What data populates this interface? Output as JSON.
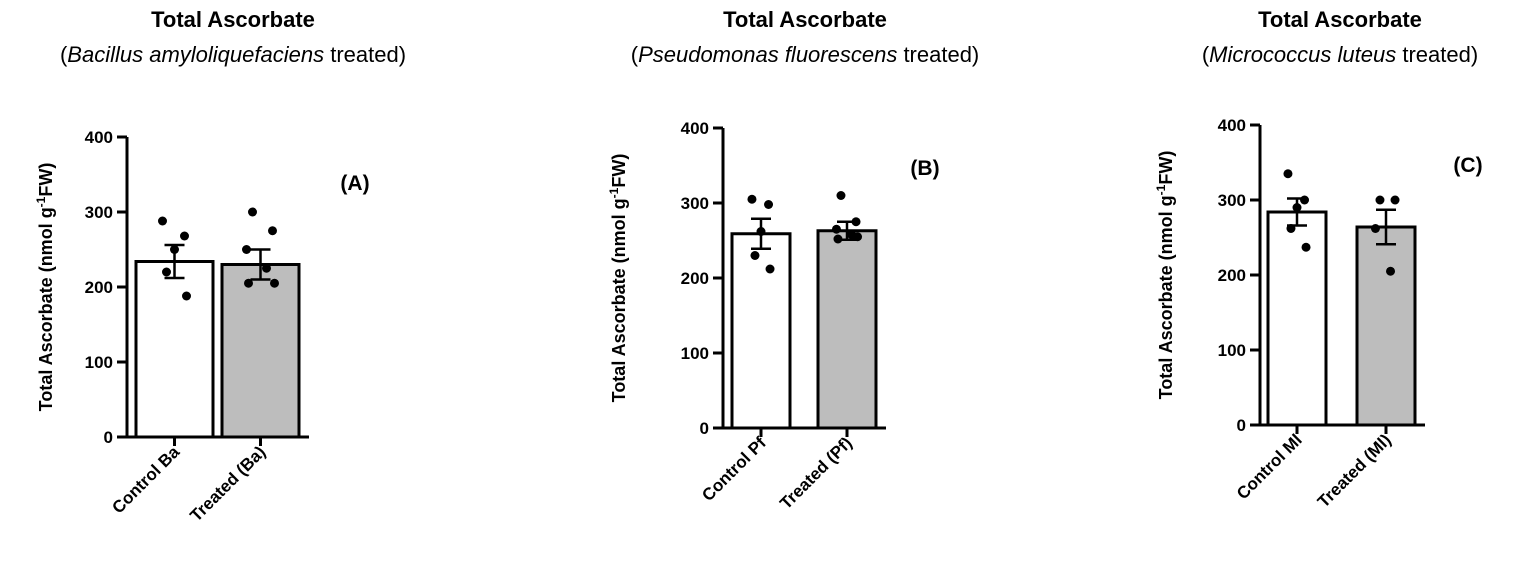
{
  "chart_data": [
    {
      "type": "bar",
      "panel_label": "(A)",
      "title": "Total Ascorbate",
      "subtitle_prefix": "(",
      "subtitle_italic": "Bacillus amyloliquefaciens",
      "subtitle_suffix": " treated)",
      "ylabel_main": "Total Ascorbate (nmol g",
      "ylabel_sup": "-1",
      "ylabel_end": "FW)",
      "ylim": [
        0,
        400
      ],
      "yticks": [
        "0",
        "100",
        "200",
        "300",
        "400"
      ],
      "categories": [
        "Control Ba",
        "Treated (Ba)"
      ],
      "values": [
        234,
        230
      ],
      "errors": [
        22,
        20
      ],
      "bar_colors": [
        "#ffffff",
        "#bdbdbd"
      ],
      "points": [
        [
          288,
          268,
          250,
          220,
          188
        ],
        [
          300,
          275,
          250,
          225,
          205,
          205
        ]
      ]
    },
    {
      "type": "bar",
      "panel_label": "(B)",
      "title": "Total Ascorbate",
      "subtitle_prefix": "(",
      "subtitle_italic": "Pseudomonas fluorescens",
      "subtitle_suffix": " treated)",
      "ylabel_main": "Total Ascorbate (nmol g",
      "ylabel_sup": "-1",
      "ylabel_end": "FW)",
      "ylim": [
        0,
        400
      ],
      "yticks": [
        "0",
        "100",
        "200",
        "300",
        "400"
      ],
      "categories": [
        "Control Pf",
        "Treated (Pf)"
      ],
      "values": [
        259,
        263
      ],
      "errors": [
        20,
        12
      ],
      "bar_colors": [
        "#ffffff",
        "#bdbdbd"
      ],
      "points": [
        [
          305,
          298,
          262,
          230,
          212
        ],
        [
          310,
          275,
          265,
          258,
          255,
          252
        ]
      ]
    },
    {
      "type": "bar",
      "panel_label": "(C)",
      "title": "Total Ascorbate",
      "subtitle_prefix": "(",
      "subtitle_italic": "Micrococcus luteus",
      "subtitle_suffix": " treated)",
      "ylabel_main": "Total Ascorbate (nmol g",
      "ylabel_sup": "-1",
      "ylabel_end": "FW)",
      "ylim": [
        0,
        400
      ],
      "yticks": [
        "0",
        "100",
        "200",
        "300",
        "400"
      ],
      "categories": [
        "Control Ml",
        "Treated (Ml)"
      ],
      "values": [
        284,
        264
      ],
      "errors": [
        18,
        23
      ],
      "bar_colors": [
        "#ffffff",
        "#bdbdbd"
      ],
      "points": [
        [
          335,
          300,
          290,
          262,
          237
        ],
        [
          300,
          300,
          262,
          205
        ]
      ]
    }
  ]
}
